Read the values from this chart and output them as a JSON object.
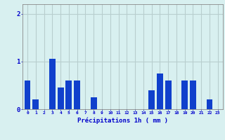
{
  "categories": [
    0,
    1,
    2,
    3,
    4,
    5,
    6,
    7,
    8,
    9,
    10,
    11,
    12,
    13,
    14,
    15,
    16,
    17,
    18,
    19,
    20,
    21,
    22,
    23
  ],
  "values": [
    0.6,
    0.2,
    0.0,
    1.05,
    0.45,
    0.6,
    0.6,
    0.0,
    0.25,
    0.0,
    0.0,
    0.0,
    0.0,
    0.0,
    0.0,
    0.4,
    0.75,
    0.6,
    0.0,
    0.6,
    0.6,
    0.0,
    0.2,
    0.0
  ],
  "bar_color": "#1040cc",
  "background_color": "#d8f0f0",
  "grid_color": "#b8cece",
  "text_color": "#0000cc",
  "xlabel": "Précipitations 1h ( mm )",
  "ylim": [
    0,
    2.2
  ],
  "yticks": [
    0,
    1,
    2
  ],
  "fig_width": 3.2,
  "fig_height": 2.0,
  "dpi": 100
}
